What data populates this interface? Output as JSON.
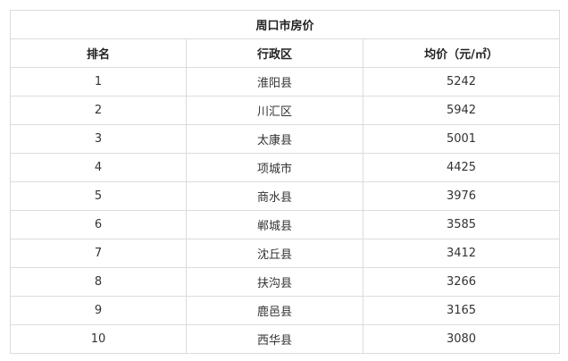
{
  "table": {
    "title": "周口市房价",
    "headers": [
      "排名",
      "行政区",
      "均价（元/㎡）"
    ],
    "rows": [
      [
        "1",
        "淮阳县",
        "5242"
      ],
      [
        "2",
        "川汇区",
        "5942"
      ],
      [
        "3",
        "太康县",
        "5001"
      ],
      [
        "4",
        "项城市",
        "4425"
      ],
      [
        "5",
        "商水县",
        "3976"
      ],
      [
        "6",
        "郸城县",
        "3585"
      ],
      [
        "7",
        "沈丘县",
        "3412"
      ],
      [
        "8",
        "扶沟县",
        "3266"
      ],
      [
        "9",
        "鹿邑县",
        "3165"
      ],
      [
        "10",
        "西华县",
        "3080"
      ]
    ]
  }
}
